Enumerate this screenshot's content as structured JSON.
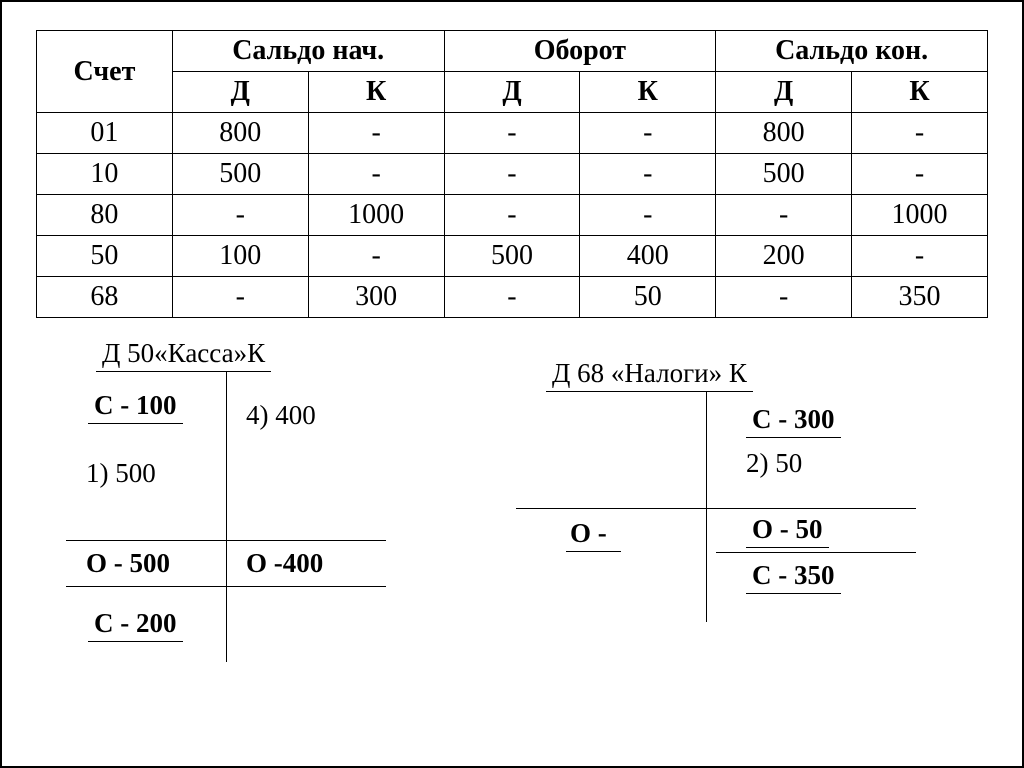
{
  "table": {
    "header": {
      "account": "Счет",
      "groups": [
        "Сальдо нач.",
        "Оборот",
        "Сальдо кон."
      ],
      "sub": [
        "Д",
        "К",
        "Д",
        "К",
        "Д",
        "К"
      ]
    },
    "rows": [
      [
        "01",
        "800",
        "-",
        "-",
        "-",
        "800",
        "-"
      ],
      [
        "10",
        "500",
        "-",
        "-",
        "-",
        "500",
        "-"
      ],
      [
        "80",
        "-",
        "1000",
        "-",
        "-",
        "-",
        "1000"
      ],
      [
        "50",
        "100",
        "-",
        "500",
        "400",
        "200",
        "-"
      ],
      [
        "68",
        "-",
        "300",
        "-",
        "50",
        "-",
        "350"
      ]
    ]
  },
  "t_accounts": {
    "kassa": {
      "title": "Д 50«Касса»К",
      "s_start": "С - 100",
      "left1": "1) 500",
      "right1": "4) 400",
      "o_left": "О - 500",
      "o_right": "О -400",
      "s_end": "С - 200"
    },
    "nalogi": {
      "title": "Д   68 «Налоги»  К",
      "s_start": "С - 300",
      "right1": "2) 50",
      "o_left": "О -",
      "o_right": "О - 50",
      "s_end": "С - 350"
    }
  },
  "style": {
    "font_family": "Times New Roman",
    "text_color": "#000000",
    "background": "#ffffff",
    "border_color": "#000000",
    "table_fontsize": 28,
    "taccount_fontsize": 27
  }
}
